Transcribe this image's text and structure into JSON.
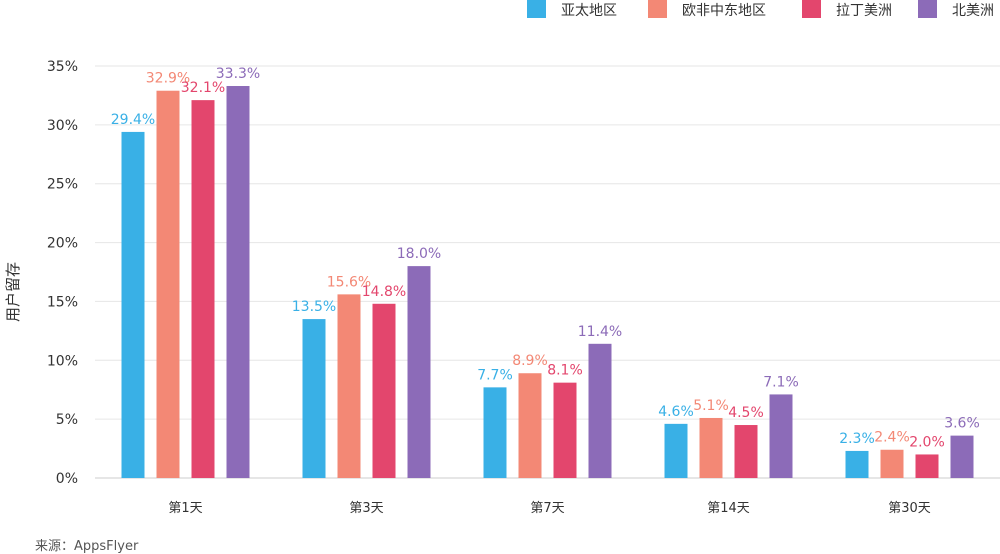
{
  "chart_data": {
    "type": "bar",
    "title": "",
    "xlabel": "",
    "ylabel": "用户留存",
    "ylim": [
      0,
      35
    ],
    "yticks": [
      0,
      5,
      10,
      15,
      20,
      25,
      30,
      35
    ],
    "ytick_labels": [
      "0%",
      "5%",
      "10%",
      "15%",
      "20%",
      "25%",
      "30%",
      "35%"
    ],
    "grid": true,
    "legend_position": "top-right",
    "categories": [
      "第1天",
      "第3天",
      "第7天",
      "第14天",
      "第30天"
    ],
    "series": [
      {
        "name": "亚太地区",
        "color": "#39b0e6",
        "values": [
          29.4,
          13.5,
          7.7,
          4.6,
          2.3
        ],
        "labels": [
          "29.4%",
          "13.5%",
          "7.7%",
          "4.6%",
          "2.3%"
        ]
      },
      {
        "name": "欧非中东地区",
        "color": "#f38875",
        "values": [
          32.9,
          15.6,
          8.9,
          5.1,
          2.4
        ],
        "labels": [
          "32.9%",
          "15.6%",
          "8.9%",
          "5.1%",
          "2.4%"
        ]
      },
      {
        "name": "拉丁美洲",
        "color": "#e3466d",
        "values": [
          32.1,
          14.8,
          8.1,
          4.5,
          2.0
        ],
        "labels": [
          "32.1%",
          "14.8%",
          "8.1%",
          "4.5%",
          "2.0%"
        ]
      },
      {
        "name": "北美洲",
        "color": "#8c6bb8",
        "values": [
          33.3,
          18.0,
          11.4,
          7.1,
          3.6
        ],
        "labels": [
          "33.3%",
          "18.0%",
          "11.4%",
          "7.1%",
          "3.6%"
        ]
      }
    ],
    "source": "来源：AppsFlyer"
  }
}
